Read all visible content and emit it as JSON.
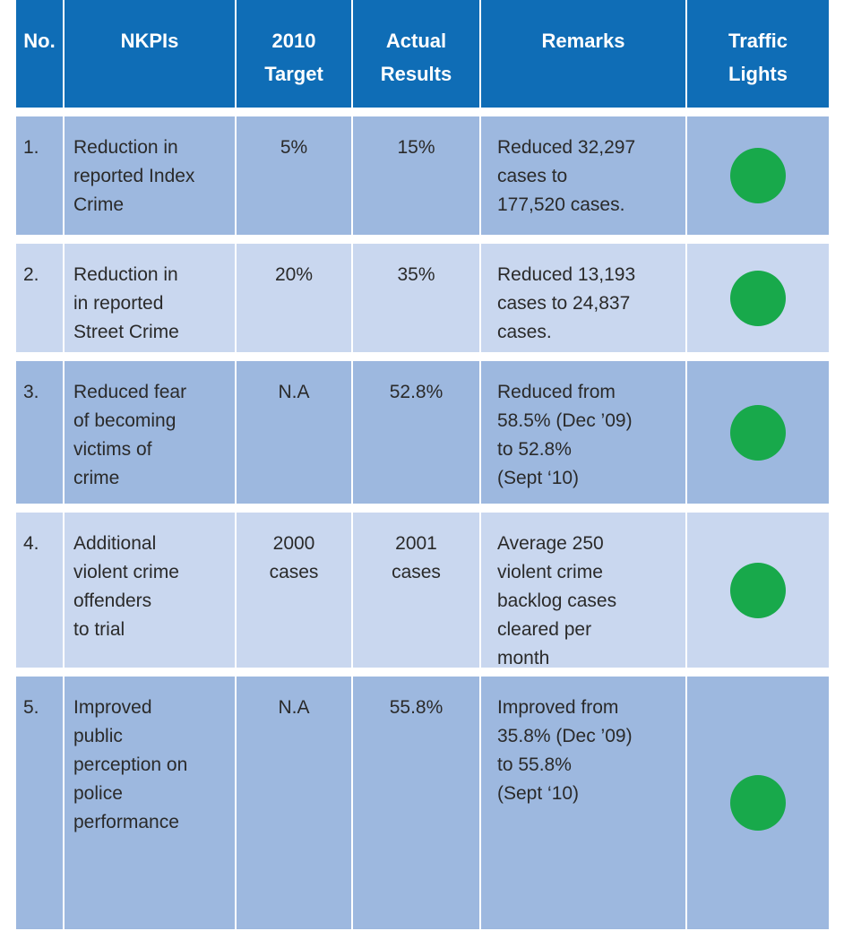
{
  "table": {
    "header": [
      "No.",
      "NKPIs",
      "2010\nTarget",
      "Actual\nResults",
      "Remarks",
      "Traffic\nLights"
    ],
    "rows": [
      [
        "1.",
        "Reduction in\nreported Index\nCrime",
        "5%",
        "15%",
        "Reduced 32,297\ncases to\n177,520 cases."
      ],
      [
        "2.",
        "Reduction in\nin reported\nStreet Crime",
        "20%",
        "35%",
        "Reduced 13,193\ncases to 24,837\ncases."
      ],
      [
        "3.",
        "Reduced fear\nof becoming\nvictims of\ncrime",
        "N.A",
        "52.8%",
        "Reduced from\n58.5% (Dec ’09)\nto 52.8%\n(Sept ‘10)"
      ],
      [
        "4.",
        "Additional\nviolent crime\noffenders\nto trial",
        "2000\ncases",
        "2001\ncases",
        "Average 250\nviolent crime\nbacklog cases\ncleared per\nmonth"
      ],
      [
        "5.",
        "Improved\npublic\nperception on\npolice\nperformance",
        "N.A",
        "55.8%",
        "Improved from\n35.8% (Dec ’09)\nto 55.8%\n(Sept ‘10)"
      ]
    ]
  }
}
